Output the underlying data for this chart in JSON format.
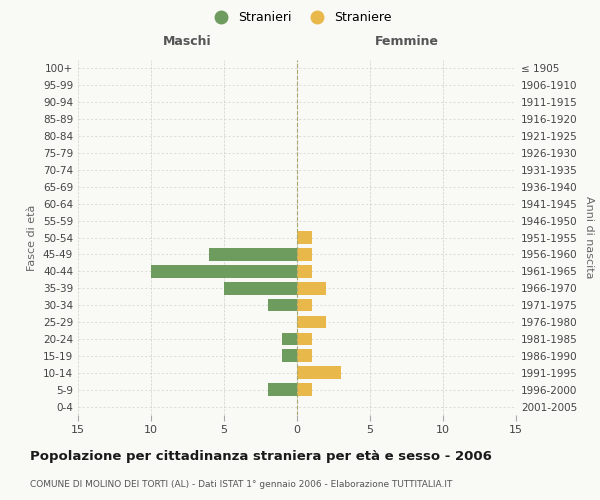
{
  "age_groups": [
    "100+",
    "95-99",
    "90-94",
    "85-89",
    "80-84",
    "75-79",
    "70-74",
    "65-69",
    "60-64",
    "55-59",
    "50-54",
    "45-49",
    "40-44",
    "35-39",
    "30-34",
    "25-29",
    "20-24",
    "15-19",
    "10-14",
    "5-9",
    "0-4"
  ],
  "birth_years": [
    "≤ 1905",
    "1906-1910",
    "1911-1915",
    "1916-1920",
    "1921-1925",
    "1926-1930",
    "1931-1935",
    "1936-1940",
    "1941-1945",
    "1946-1950",
    "1951-1955",
    "1956-1960",
    "1961-1965",
    "1966-1970",
    "1971-1975",
    "1976-1980",
    "1981-1985",
    "1986-1990",
    "1991-1995",
    "1996-2000",
    "2001-2005"
  ],
  "males": [
    0,
    0,
    0,
    0,
    0,
    0,
    0,
    0,
    0,
    0,
    0,
    6,
    10,
    5,
    2,
    0,
    1,
    1,
    0,
    2,
    0
  ],
  "females": [
    0,
    0,
    0,
    0,
    0,
    0,
    0,
    0,
    0,
    0,
    1,
    1,
    1,
    2,
    1,
    2,
    1,
    1,
    3,
    1,
    0
  ],
  "male_color": "#6e9b5e",
  "female_color": "#e8b84b",
  "xlim": 15,
  "xlabel_left": "Maschi",
  "xlabel_right": "Femmine",
  "ylabel_left": "Fasce di età",
  "ylabel_right": "Anni di nascita",
  "legend_male": "Stranieri",
  "legend_female": "Straniere",
  "title": "Popolazione per cittadinanza straniera per età e sesso - 2006",
  "subtitle": "COMUNE DI MOLINO DEI TORTI (AL) - Dati ISTAT 1° gennaio 2006 - Elaborazione TUTTITALIA.IT",
  "bg_color": "#f9f9f6",
  "grid_color": "#d0d0cc",
  "bar_height": 0.75
}
